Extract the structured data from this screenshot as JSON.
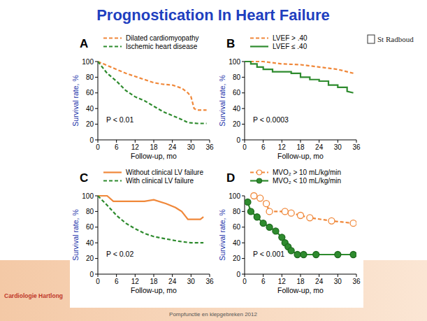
{
  "slide": {
    "title": "Prognostication In Heart Failure",
    "logo": "St Radboud",
    "organization": "Cardiologie Hartlong",
    "footer": "Pompfunctie en klepgebreken 2012"
  },
  "chart_data": [
    {
      "type": "line",
      "title": "A",
      "x_label": "Follow-up, mo",
      "y_label": "Survival rate, %",
      "annotations": [
        "P < 0.01"
      ],
      "xlim": [
        0,
        36
      ],
      "ylim": [
        0,
        100
      ],
      "xticks": [
        0,
        6,
        12,
        18,
        24,
        30,
        36
      ],
      "yticks": [
        0,
        20,
        40,
        60,
        80,
        100
      ],
      "legend": "top",
      "series": [
        {
          "name": "Dilated cardiomyopathy",
          "color": "#f0883a",
          "line_style": "dashed",
          "x": [
            0,
            3,
            6,
            9,
            12,
            15,
            18,
            21,
            24,
            27,
            29,
            30,
            31,
            32,
            35
          ],
          "values": [
            100,
            95,
            90,
            85,
            81,
            77,
            73,
            71,
            70,
            66,
            60,
            55,
            40,
            38,
            38
          ]
        },
        {
          "name": "Ischemic heart disease",
          "color": "#2e8b2e",
          "line_style": "dashed",
          "x": [
            0,
            3,
            6,
            9,
            12,
            15,
            18,
            21,
            24,
            27,
            29,
            32,
            35
          ],
          "values": [
            100,
            85,
            75,
            63,
            55,
            50,
            43,
            36,
            31,
            26,
            22,
            21,
            21
          ]
        }
      ]
    },
    {
      "type": "line",
      "title": "B",
      "x_label": "Follow-up, mo",
      "y_label": "Survival rate, %",
      "annotations": [
        "P < 0.0003"
      ],
      "xlim": [
        0,
        36
      ],
      "ylim": [
        0,
        100
      ],
      "xticks": [
        0,
        6,
        12,
        18,
        24,
        30,
        36
      ],
      "yticks": [
        0,
        20,
        40,
        60,
        80,
        100
      ],
      "legend": "top",
      "series": [
        {
          "name": "LVEF > .40",
          "color": "#f0883a",
          "line_style": "dashed",
          "x": [
            0,
            6,
            12,
            18,
            24,
            30,
            35
          ],
          "values": [
            100,
            100,
            97,
            96,
            93,
            90,
            85
          ]
        },
        {
          "name": "LVEF ≤ .40",
          "color": "#2e8b2e",
          "line_style": "solid",
          "x": [
            0,
            2,
            2,
            4,
            4,
            6,
            6,
            9,
            9,
            15,
            15,
            18,
            18,
            21,
            21,
            24,
            24,
            27,
            27,
            30,
            30,
            33,
            33,
            35
          ],
          "values": [
            100,
            100,
            97,
            97,
            93,
            93,
            90,
            90,
            87,
            87,
            85,
            85,
            80,
            80,
            77,
            77,
            75,
            75,
            70,
            70,
            67,
            67,
            62,
            60
          ]
        }
      ]
    },
    {
      "type": "line",
      "title": "C",
      "x_label": "Follow-up, mo",
      "y_label": "Survival rate, %",
      "annotations": [
        "P < 0.02"
      ],
      "xlim": [
        0,
        36
      ],
      "ylim": [
        0,
        100
      ],
      "xticks": [
        0,
        6,
        12,
        18,
        24,
        30,
        36
      ],
      "yticks": [
        0,
        20,
        40,
        60,
        80,
        100
      ],
      "legend": "top",
      "series": [
        {
          "name": "Without clinical LV failure",
          "color": "#f0883a",
          "line_style": "solid",
          "x": [
            0,
            3,
            5,
            15,
            18,
            22,
            25,
            27,
            29,
            33,
            34
          ],
          "values": [
            100,
            100,
            93,
            93,
            95,
            90,
            85,
            80,
            70,
            70,
            73
          ]
        },
        {
          "name": "With clinical LV failure",
          "color": "#2e8b2e",
          "line_style": "dashed",
          "x": [
            0,
            3,
            6,
            9,
            12,
            15,
            18,
            22,
            26,
            30,
            34
          ],
          "values": [
            100,
            88,
            75,
            65,
            58,
            52,
            48,
            45,
            42,
            40,
            40
          ]
        }
      ]
    },
    {
      "type": "line",
      "title": "D",
      "x_label": "Follow-up, mo",
      "y_label": "Survival rate, %",
      "annotations": [
        "P < 0.001"
      ],
      "xlim": [
        0,
        36
      ],
      "ylim": [
        0,
        100
      ],
      "xticks": [
        0,
        6,
        12,
        18,
        24,
        30,
        36
      ],
      "yticks": [
        0,
        20,
        40,
        60,
        80,
        100
      ],
      "legend": "top",
      "series": [
        {
          "name": "MVO₂ > 10 mL/kg/min",
          "color": "#f0883a",
          "line_style": "dashed",
          "marker": "circle-open",
          "x": [
            3,
            5,
            7,
            8,
            13,
            15,
            18,
            21,
            28,
            35
          ],
          "values": [
            100,
            97,
            90,
            80,
            80,
            78,
            75,
            72,
            68,
            65
          ]
        },
        {
          "name": "MVO₂ < 10 mL/kg/min",
          "color": "#2e8b2e",
          "line_style": "solid",
          "marker": "circle",
          "x": [
            1,
            2,
            4,
            6,
            8,
            10,
            12,
            13,
            14,
            15,
            17,
            19,
            23,
            30,
            35
          ],
          "values": [
            92,
            80,
            73,
            65,
            60,
            55,
            47,
            40,
            35,
            30,
            25,
            25,
            25,
            25,
            25
          ]
        }
      ]
    }
  ]
}
